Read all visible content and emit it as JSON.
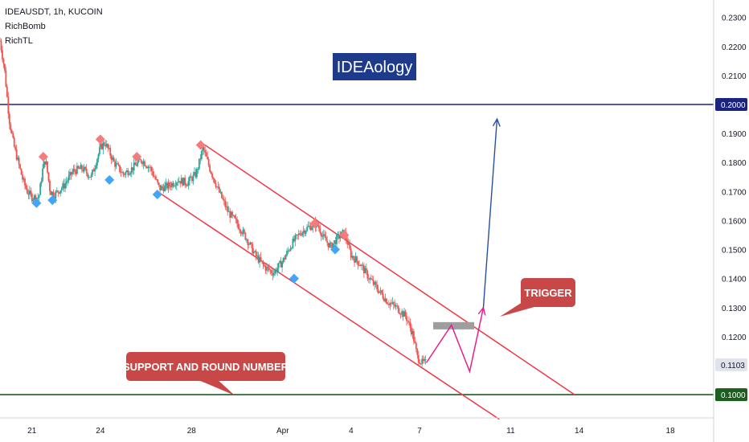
{
  "header": {
    "symbol": "IDEAUSDT, 1h, KUCOIN",
    "indicators": [
      "RichBomb",
      "RichTL"
    ]
  },
  "brand_label": "IDEAology",
  "annotations": {
    "trigger": "TRIGGER",
    "support": "SUPPORT AND ROUND NUMBER"
  },
  "colors": {
    "up": "#26a69a",
    "down": "#ef5350",
    "channel": "#f23645",
    "resistance_line": "#1a237e",
    "support_line": "#1b5e20",
    "brand_bg": "#1e3a8a",
    "label_bg": "#c84848",
    "projection": "#e91e8c",
    "target_arrow": "#2850a0",
    "bear_marker": "#f47c7c",
    "bull_marker": "#42a5f5",
    "trigger_zone": "#9e9e9e"
  },
  "chart_data": {
    "type": "candlestick",
    "y_range": [
      0.092,
      0.236
    ],
    "x_range": [
      19.6,
      19.95
    ],
    "y_ticks": [
      "0.2300",
      "0.2200",
      "0.2100",
      "0.1900",
      "0.1800",
      "0.1700",
      "0.1600",
      "0.1500",
      "0.1400",
      "0.1300",
      "0.1200"
    ],
    "x_ticks": [
      {
        "label": "21",
        "x": 21
      },
      {
        "label": "24",
        "x": 24
      },
      {
        "label": "28",
        "x": 28
      },
      {
        "label": "Apr",
        "x": 32
      },
      {
        "label": "4",
        "x": 35
      },
      {
        "label": "7",
        "x": 38
      },
      {
        "label": "11",
        "x": 42
      },
      {
        "label": "14",
        "x": 45
      },
      {
        "label": "18",
        "x": 49
      }
    ],
    "x_ticks_meta": "day-of-month (Mar then Apr)",
    "price_badges": [
      {
        "value": "0.2000",
        "price": 0.2,
        "style": "resistance"
      },
      {
        "value": "0.1103",
        "price": 0.1103,
        "style": "current"
      },
      {
        "value": "0.1000",
        "price": 0.1,
        "style": "support"
      }
    ],
    "horizontal_lines": [
      {
        "price": 0.2,
        "role": "resistance"
      },
      {
        "price": 0.1,
        "role": "support"
      }
    ],
    "channel": {
      "upper": [
        [
          28.5,
          0.1865
        ],
        [
          44.8,
          0.1
        ],
        [
          44.8,
          0.1
        ]
      ],
      "lower": [
        [
          26.6,
          0.1695
        ],
        [
          41.5,
          0.0915
        ]
      ]
    },
    "price_path": [
      [
        19.6,
        0.222
      ],
      [
        19.8,
        0.212
      ],
      [
        20.0,
        0.195
      ],
      [
        20.2,
        0.186
      ],
      [
        20.4,
        0.18
      ],
      [
        20.6,
        0.174
      ],
      [
        20.8,
        0.17
      ],
      [
        21.0,
        0.168
      ],
      [
        21.3,
        0.168
      ],
      [
        21.5,
        0.179
      ],
      [
        21.6,
        0.181
      ],
      [
        21.8,
        0.17
      ],
      [
        22.0,
        0.169
      ],
      [
        22.4,
        0.172
      ],
      [
        22.8,
        0.177
      ],
      [
        23.2,
        0.178
      ],
      [
        23.6,
        0.175
      ],
      [
        24.0,
        0.185
      ],
      [
        24.2,
        0.187
      ],
      [
        24.6,
        0.18
      ],
      [
        25.0,
        0.176
      ],
      [
        25.4,
        0.178
      ],
      [
        25.8,
        0.181
      ],
      [
        26.2,
        0.178
      ],
      [
        26.6,
        0.171
      ],
      [
        27.0,
        0.172
      ],
      [
        27.4,
        0.174
      ],
      [
        27.8,
        0.173
      ],
      [
        28.2,
        0.176
      ],
      [
        28.5,
        0.185
      ],
      [
        28.8,
        0.178
      ],
      [
        29.2,
        0.17
      ],
      [
        29.6,
        0.163
      ],
      [
        30.0,
        0.159
      ],
      [
        30.4,
        0.154
      ],
      [
        30.8,
        0.148
      ],
      [
        31.2,
        0.144
      ],
      [
        31.6,
        0.142
      ],
      [
        32.0,
        0.146
      ],
      [
        32.4,
        0.152
      ],
      [
        32.8,
        0.156
      ],
      [
        33.2,
        0.158
      ],
      [
        33.5,
        0.159
      ],
      [
        33.8,
        0.154
      ],
      [
        34.1,
        0.151
      ],
      [
        34.4,
        0.154
      ],
      [
        34.7,
        0.156
      ],
      [
        35.0,
        0.148
      ],
      [
        35.4,
        0.145
      ],
      [
        35.8,
        0.14
      ],
      [
        36.2,
        0.136
      ],
      [
        36.6,
        0.132
      ],
      [
        37.0,
        0.13
      ],
      [
        37.4,
        0.127
      ],
      [
        37.7,
        0.121
      ],
      [
        37.9,
        0.113
      ],
      [
        38.1,
        0.111
      ],
      [
        38.3,
        0.111
      ]
    ],
    "bear_markers": [
      [
        21.5,
        0.182
      ],
      [
        24.0,
        0.188
      ],
      [
        25.6,
        0.182
      ],
      [
        28.4,
        0.186
      ],
      [
        33.4,
        0.159
      ],
      [
        34.7,
        0.155
      ]
    ],
    "bull_markers": [
      [
        21.2,
        0.166
      ],
      [
        21.9,
        0.167
      ],
      [
        24.4,
        0.174
      ],
      [
        26.5,
        0.169
      ],
      [
        32.5,
        0.14
      ],
      [
        34.3,
        0.15
      ]
    ],
    "trigger_zone": {
      "x": [
        38.6,
        40.4
      ],
      "price": [
        0.1225,
        0.125
      ]
    },
    "projection_path": [
      [
        38.3,
        0.111
      ],
      [
        39.4,
        0.124
      ],
      [
        40.2,
        0.108
      ],
      [
        40.8,
        0.13
      ]
    ],
    "target_arrow": [
      [
        40.8,
        0.13
      ],
      [
        41.4,
        0.195
      ]
    ]
  }
}
